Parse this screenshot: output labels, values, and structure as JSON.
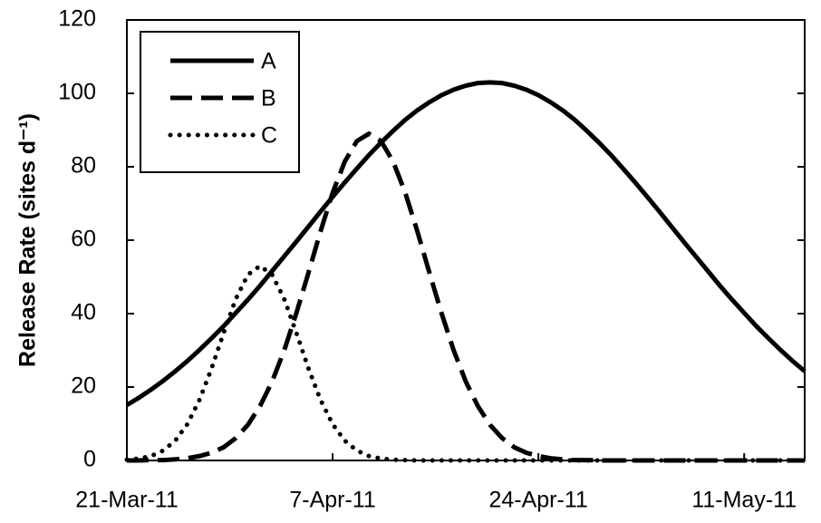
{
  "chart_data": {
    "type": "line",
    "y_label": "Release Rate (sites d⁻¹)",
    "x": [
      "2011-03-21",
      "2011-03-22",
      "2011-03-23",
      "2011-03-24",
      "2011-03-25",
      "2011-03-26",
      "2011-03-27",
      "2011-03-28",
      "2011-03-29",
      "2011-03-30",
      "2011-03-31",
      "2011-04-01",
      "2011-04-02",
      "2011-04-03",
      "2011-04-04",
      "2011-04-05",
      "2011-04-06",
      "2011-04-07",
      "2011-04-08",
      "2011-04-09",
      "2011-04-10",
      "2011-04-11",
      "2011-04-12",
      "2011-04-13",
      "2011-04-14",
      "2011-04-15",
      "2011-04-16",
      "2011-04-17",
      "2011-04-18",
      "2011-04-19",
      "2011-04-20",
      "2011-04-21",
      "2011-04-22",
      "2011-04-23",
      "2011-04-24",
      "2011-04-25",
      "2011-04-26",
      "2011-04-27",
      "2011-04-28",
      "2011-04-29",
      "2011-04-30",
      "2011-05-01",
      "2011-05-02",
      "2011-05-03",
      "2011-05-04",
      "2011-05-05",
      "2011-05-06",
      "2011-05-07",
      "2011-05-08",
      "2011-05-09",
      "2011-05-10",
      "2011-05-11",
      "2011-05-12",
      "2011-05-13",
      "2011-05-14",
      "2011-05-15",
      "2011-05-16"
    ],
    "series": [
      {
        "name": "A",
        "color": "#000000",
        "style": "solid",
        "values": [
          15.1,
          17.1,
          19.3,
          21.7,
          24.3,
          27.1,
          30.1,
          33.3,
          36.6,
          40.2,
          43.8,
          47.6,
          51.6,
          55.6,
          59.6,
          63.7,
          67.8,
          71.8,
          75.7,
          79.5,
          83.2,
          86.6,
          89.8,
          92.8,
          95.4,
          97.6,
          99.5,
          101.0,
          102.1,
          102.8,
          103,
          102.8,
          102.1,
          101.0,
          99.5,
          97.6,
          95.4,
          92.8,
          89.8,
          86.6,
          83.2,
          79.5,
          75.7,
          71.8,
          67.8,
          63.7,
          59.6,
          55.6,
          51.6,
          47.6,
          43.8,
          40.2,
          36.6,
          33.3,
          30.1,
          27.1,
          24.3
        ]
      },
      {
        "name": "B",
        "color": "#000000",
        "style": "dashed",
        "values": [
          0,
          0,
          0.1,
          0.1,
          0.3,
          0.6,
          1.2,
          2.1,
          3.6,
          6.1,
          9.7,
          14.8,
          21.5,
          30.0,
          40.1,
          51.1,
          62.4,
          72.9,
          81.4,
          87.0,
          89,
          87.0,
          81.4,
          72.9,
          62.4,
          51.1,
          40.1,
          30.0,
          21.5,
          14.8,
          9.7,
          6.1,
          3.6,
          2.1,
          1.2,
          0.6,
          0.3,
          0.1,
          0.1,
          0,
          0,
          0,
          0,
          0,
          0,
          0,
          0,
          0,
          0,
          0,
          0,
          0,
          0,
          0,
          0,
          0,
          0
        ]
      },
      {
        "name": "C",
        "color": "#000000",
        "style": "dotted",
        "values": [
          0.2,
          0.5,
          1.2,
          2.7,
          5.4,
          9.9,
          16.5,
          25.1,
          34.8,
          44.0,
          50.6,
          53,
          50.6,
          44.0,
          34.8,
          25.1,
          16.5,
          9.9,
          5.4,
          2.7,
          1.2,
          0.5,
          0.2,
          0.1,
          0,
          0,
          0,
          0,
          0,
          0,
          0,
          0,
          0,
          0,
          0,
          0,
          0,
          0,
          0,
          0,
          0,
          0,
          0,
          0,
          0,
          0,
          0,
          0,
          0,
          0,
          0,
          0,
          0,
          0,
          0,
          0,
          0
        ]
      }
    ],
    "xlim": [
      "2011-03-21",
      "2011-05-16"
    ],
    "xticks": [
      {
        "value": "2011-03-21",
        "label": "21-Mar-11"
      },
      {
        "value": "2011-04-07",
        "label": "7-Apr-11"
      },
      {
        "value": "2011-04-24",
        "label": "24-Apr-11"
      },
      {
        "value": "2011-05-11",
        "label": "11-May-11"
      }
    ],
    "ylim": [
      0,
      120
    ],
    "yticks": [
      0,
      20,
      40,
      60,
      80,
      100,
      120
    ],
    "legend": "upper-left"
  }
}
